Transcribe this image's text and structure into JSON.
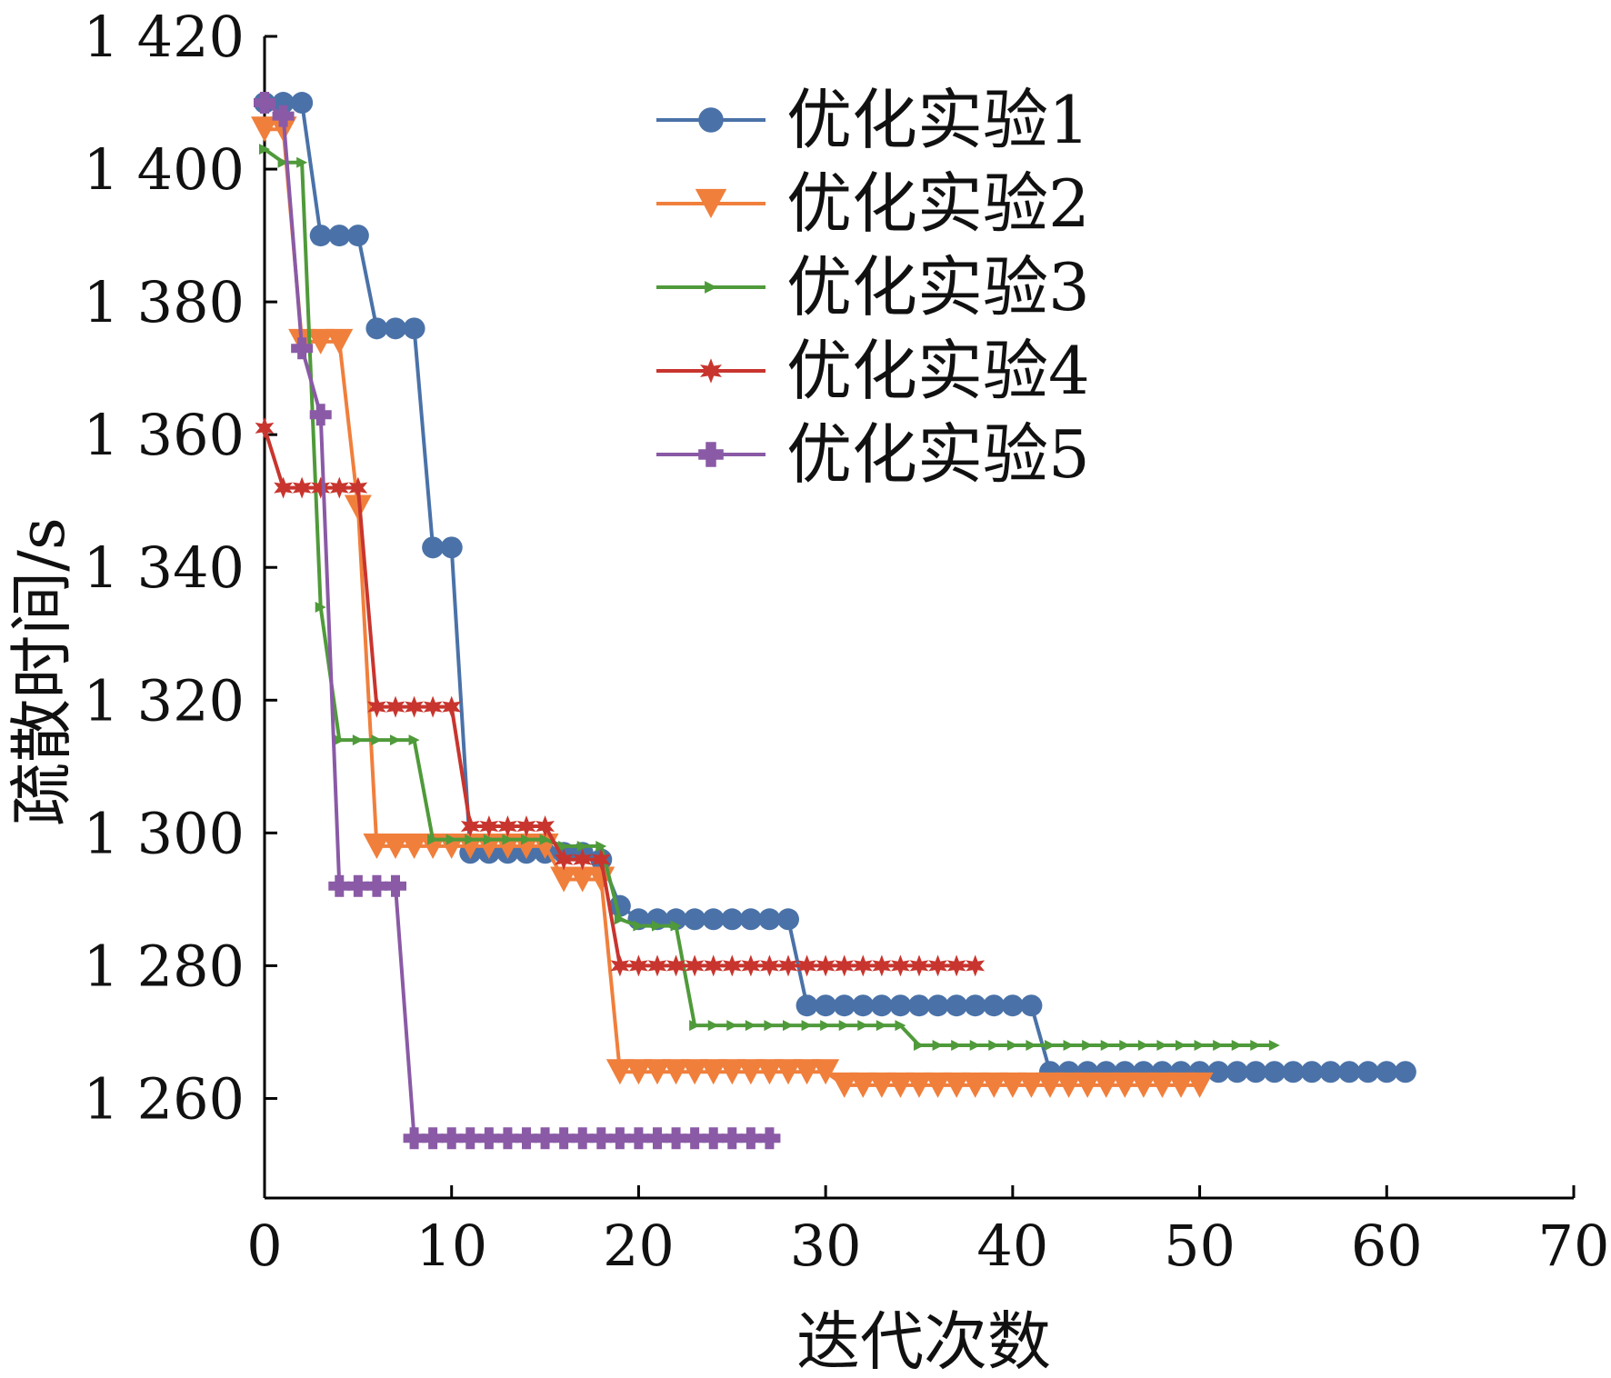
{
  "chart_data": {
    "type": "line",
    "title": "",
    "xlabel": "迭代次数",
    "ylabel": "疏散时间/s",
    "xlim": [
      0,
      70
    ],
    "ylim": [
      1245,
      1420
    ],
    "xticks": [
      0,
      10,
      20,
      30,
      40,
      50,
      60,
      70
    ],
    "xtick_labels": [
      "0",
      "10",
      "20",
      "30",
      "40",
      "50",
      "60",
      "70"
    ],
    "yticks": [
      1260,
      1280,
      1300,
      1320,
      1340,
      1360,
      1380,
      1400,
      1420
    ],
    "ytick_labels": [
      "1 260",
      "1 280",
      "1 300",
      "1 320",
      "1 340",
      "1 360",
      "1 380",
      "1 400",
      "1 420"
    ],
    "grid": false,
    "legend_position": "top-center",
    "series": [
      {
        "name": "优化实验1",
        "color": "#4a72a8",
        "marker": "circle",
        "steps": [
          [
            0,
            1410
          ],
          [
            3,
            1390
          ],
          [
            6,
            1376
          ],
          [
            9,
            1343
          ],
          [
            11,
            1297
          ],
          [
            18,
            1296
          ],
          [
            19,
            1289
          ],
          [
            20,
            1287
          ],
          [
            29,
            1274
          ],
          [
            42,
            1264
          ],
          [
            61,
            1264
          ]
        ]
      },
      {
        "name": "优化实验2",
        "color": "#f07f3c",
        "marker": "triangle-down",
        "steps": [
          [
            0,
            1406
          ],
          [
            2,
            1374
          ],
          [
            5,
            1349
          ],
          [
            6,
            1298
          ],
          [
            16,
            1293
          ],
          [
            19,
            1264
          ],
          [
            31,
            1262
          ],
          [
            50,
            1262
          ]
        ]
      },
      {
        "name": "优化实验3",
        "color": "#4f9a3a",
        "marker": "tri",
        "steps": [
          [
            0,
            1403
          ],
          [
            1,
            1401
          ],
          [
            3,
            1334
          ],
          [
            4,
            1314
          ],
          [
            9,
            1299
          ],
          [
            16,
            1298
          ],
          [
            19,
            1287
          ],
          [
            20,
            1286
          ],
          [
            23,
            1271
          ],
          [
            35,
            1268
          ],
          [
            54,
            1268
          ]
        ]
      },
      {
        "name": "优化实验4",
        "color": "#c8352e",
        "marker": "star",
        "steps": [
          [
            0,
            1361
          ],
          [
            1,
            1352
          ],
          [
            6,
            1319
          ],
          [
            11,
            1301
          ],
          [
            16,
            1296
          ],
          [
            19,
            1280
          ],
          [
            38,
            1280
          ]
        ]
      },
      {
        "name": "优化实验5",
        "color": "#8a5aa6",
        "marker": "plus-square",
        "steps": [
          [
            0,
            1410
          ],
          [
            1,
            1408
          ],
          [
            2,
            1373
          ],
          [
            3,
            1363
          ],
          [
            4,
            1292
          ],
          [
            8,
            1254
          ],
          [
            27,
            1254
          ]
        ]
      }
    ]
  }
}
